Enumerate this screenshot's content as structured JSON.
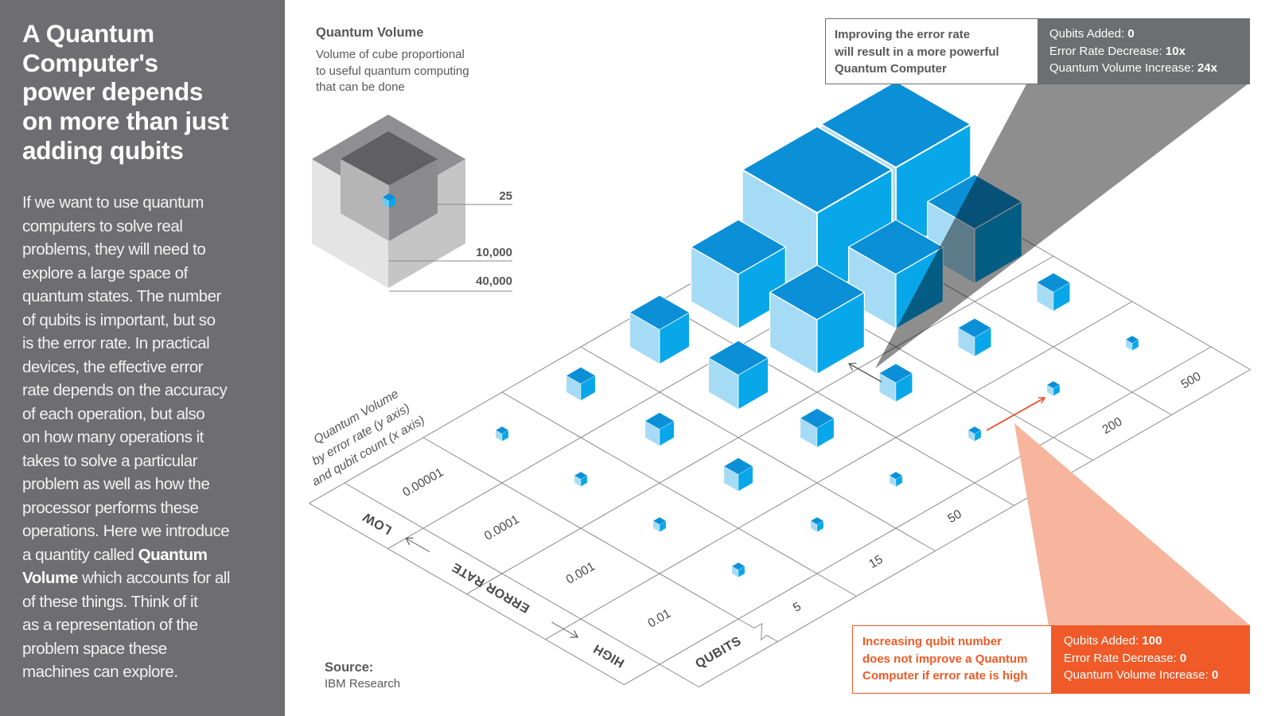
{
  "sidebar": {
    "title_lines": [
      "A Quantum",
      "Computer's",
      "power depends",
      "on more than just",
      "adding qubits"
    ],
    "body_lines": [
      {
        "pre": "If we want to use quantum"
      },
      {
        "pre": "computers to solve real"
      },
      {
        "pre": "problems, they will need to"
      },
      {
        "pre": "explore a large space of"
      },
      {
        "pre": "quantum states. The number"
      },
      {
        "pre": "of qubits is important, but so"
      },
      {
        "pre": "is the error rate. In practical"
      },
      {
        "pre": "devices, the effective error"
      },
      {
        "pre": "rate depends on the accuracy"
      },
      {
        "pre": "of each operation, but also"
      },
      {
        "pre": "on how many operations it"
      },
      {
        "pre": "takes to solve a particular"
      },
      {
        "pre": "problem as well as how the"
      },
      {
        "pre": "processor performs these"
      },
      {
        "pre": "operations. Here we introduce"
      },
      {
        "pre": "a quantity called ",
        "bold": "Quantum"
      },
      {
        "bold": "Volume",
        "post": " which accounts for all"
      },
      {
        "pre": "of these things. Think of it"
      },
      {
        "pre": "as a representation of the"
      },
      {
        "pre": "problem space these"
      },
      {
        "pre": "machines can explore."
      }
    ]
  },
  "legend": {
    "title": "Quantum Volume",
    "description_lines": [
      "Volume of cube proportional",
      "to useful quantum computing",
      "that can be done"
    ],
    "values": [
      "25",
      "10,000",
      "40,000"
    ]
  },
  "axis_caption": {
    "lines": [
      "Quantum Volume",
      "by error rate (y axis)",
      "and qubit count (x axis)"
    ]
  },
  "error_rate_axis": {
    "label": "ERROR RATE",
    "low": "LOW",
    "high": "HIGH",
    "values": [
      "0.01",
      "0.001",
      "0.0001",
      "0.00001"
    ]
  },
  "qubit_axis": {
    "label": "QUBITS",
    "values": [
      "5",
      "15",
      "50",
      "100",
      "200",
      "500"
    ]
  },
  "chart_data": {
    "type": "isometric-cube-grid",
    "x": {
      "name": "qubits",
      "categories": [
        "5",
        "15",
        "50",
        "100",
        "200",
        "500"
      ]
    },
    "y": {
      "name": "error rate",
      "categories": [
        "0.01",
        "0.001",
        "0.0001",
        "0.00001"
      ]
    },
    "quantum_volume_estimated": [
      [
        25,
        25,
        25,
        25,
        25,
        25
      ],
      [
        25,
        285,
        450,
        420,
        420,
        420
      ],
      [
        25,
        285,
        2500,
        10000,
        10000,
        10000
      ],
      [
        25,
        285,
        2500,
        10000,
        40000,
        40000
      ]
    ],
    "legend_scale": [
      25,
      10000,
      40000
    ]
  },
  "callouts": {
    "error_rate": {
      "text_lines": [
        "Improving the error rate",
        "will result in a more powerful",
        "Quantum Computer"
      ],
      "stats": [
        {
          "label": "Qubits Added: ",
          "value": "0"
        },
        {
          "label": "Error Rate Decrease: ",
          "value": "10x"
        },
        {
          "label": "Quantum Volume Increase: ",
          "value": "24x"
        }
      ]
    },
    "qubits": {
      "text_lines": [
        "Increasing qubit number",
        "does not improve a Quantum",
        "Computer if error rate is high"
      ],
      "stats": [
        {
          "label": "Qubits Added: ",
          "value": "100"
        },
        {
          "label": "Error Rate Decrease: ",
          "value": "0"
        },
        {
          "label": "Quantum Volume Increase: ",
          "value": "0"
        }
      ]
    }
  },
  "source": {
    "label": "Source:",
    "name": "IBM Research"
  },
  "colors": {
    "sidebar": "#6d6d72",
    "cube_top": "#0b8fd6",
    "cube_left": "#a6dbf6",
    "cube_right": "#07a7ea",
    "accent_orange": "#f05a28",
    "orange_shadow": "#f6b59c",
    "gray_callout": "#6d6e71"
  }
}
